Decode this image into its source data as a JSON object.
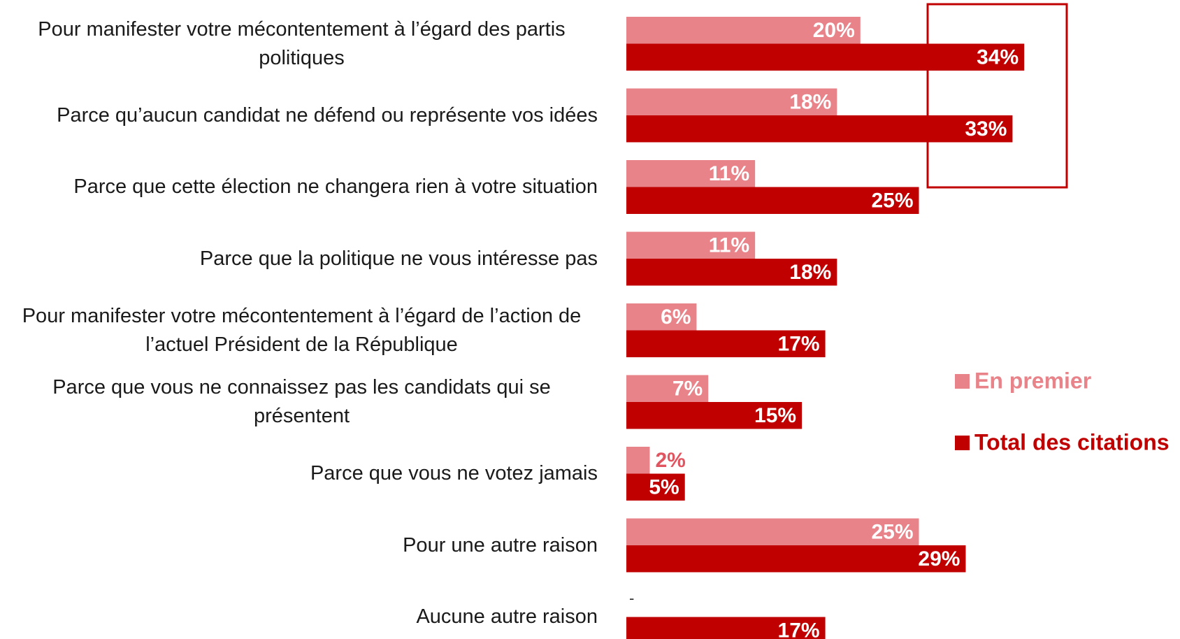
{
  "chart_data": {
    "type": "hbar",
    "categories": [
      "Pour manifester votre mécontentement à l’égard des partis politiques",
      "Parce qu’aucun candidat ne défend ou représente vos idées",
      "Parce que cette élection ne changera rien à votre situation",
      "Parce que la politique ne vous intéresse pas",
      "Pour manifester votre mécontentement à l’égard de l’action de l’actuel Président de la République",
      "Parce que vous ne connaissez pas les candidats qui se présentent",
      "Parce que vous ne votez jamais",
      "Pour une autre raison",
      "Aucune autre raison"
    ],
    "series": [
      {
        "name": "En premier",
        "color": "#e8838a",
        "values": [
          20,
          18,
          11,
          11,
          6,
          7,
          2,
          25,
          null
        ],
        "value_labels": [
          "20%",
          "18%",
          "11%",
          "11%",
          "6%",
          "7%",
          "2%",
          "25%",
          "-"
        ]
      },
      {
        "name": "Total des citations",
        "color": "#c00000",
        "values": [
          34,
          33,
          25,
          18,
          17,
          15,
          5,
          29,
          17
        ],
        "value_labels": [
          "34%",
          "33%",
          "25%",
          "18%",
          "17%",
          "15%",
          "5%",
          "29%",
          "17%"
        ]
      }
    ]
  }
}
